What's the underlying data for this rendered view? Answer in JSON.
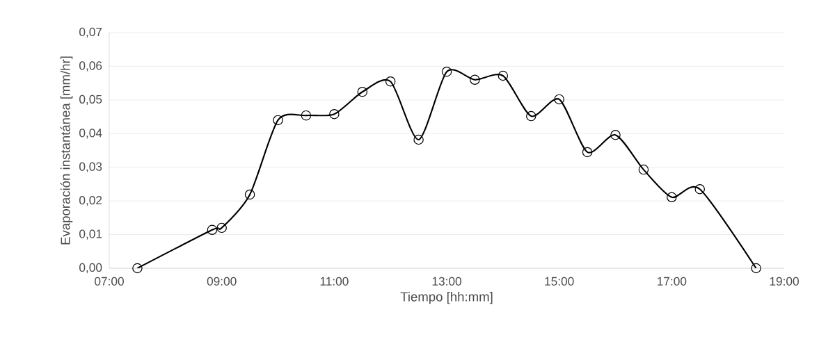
{
  "chart_data": {
    "type": "line",
    "xlabel": "Tiempo [hh:mm]",
    "ylabel": "Evaporación instantánea [mm/hr]",
    "x": [
      7.5,
      8.83,
      9.0,
      9.5,
      10.0,
      10.5,
      11.0,
      11.5,
      12.0,
      12.5,
      13.0,
      13.5,
      14.0,
      14.5,
      15.0,
      15.5,
      16.0,
      16.5,
      17.0,
      17.5,
      18.5
    ],
    "series": [
      {
        "color": "#000000",
        "values": [
          0.0,
          0.0114,
          0.012,
          0.0219,
          0.044,
          0.0454,
          0.0458,
          0.0524,
          0.0555,
          0.0382,
          0.0584,
          0.056,
          0.0572,
          0.0452,
          0.0502,
          0.0345,
          0.0396,
          0.0293,
          0.0211,
          0.0235,
          0.0
        ]
      }
    ],
    "xlim": [
      7,
      19
    ],
    "xticks": [
      {
        "value": 7,
        "label": "07:00"
      },
      {
        "value": 9,
        "label": "09:00"
      },
      {
        "value": 11,
        "label": "11:00"
      },
      {
        "value": 13,
        "label": "13:00"
      },
      {
        "value": 15,
        "label": "15:00"
      },
      {
        "value": 17,
        "label": "17:00"
      },
      {
        "value": 19,
        "label": "19:00"
      }
    ],
    "ylim": [
      0,
      0.07
    ],
    "yticks": [
      {
        "value": 0,
        "label": "0,00"
      },
      {
        "value": 0.01,
        "label": "0,01"
      },
      {
        "value": 0.02,
        "label": "0,02"
      },
      {
        "value": 0.03,
        "label": "0,03"
      },
      {
        "value": 0.04,
        "label": "0,04"
      },
      {
        "value": 0.05,
        "label": "0,05"
      },
      {
        "value": 0.06,
        "label": "0,06"
      },
      {
        "value": 0.07,
        "label": "0,07"
      }
    ],
    "grid": "y",
    "marker": "circle",
    "line_style": "solid"
  }
}
